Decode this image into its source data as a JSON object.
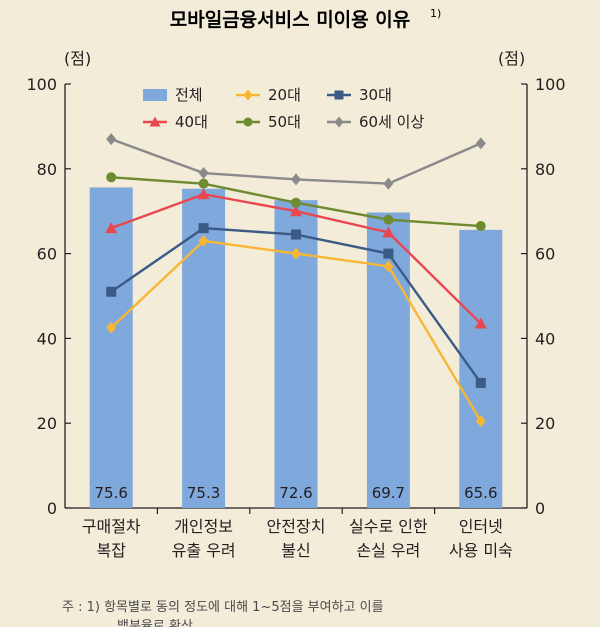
{
  "chart_data": {
    "type": "bar",
    "title": "모바일금융서비스 미이용 이유",
    "title_sup": "1)",
    "ylabel_left": "(점)",
    "ylabel_right": "(점)",
    "ylim": [
      0,
      100
    ],
    "yticks": [
      0,
      20,
      40,
      60,
      80,
      100
    ],
    "categories": [
      [
        "구매절차",
        "복잡"
      ],
      [
        "개인정보",
        "유출 우려"
      ],
      [
        "안전장치",
        "불신"
      ],
      [
        "실수로 인한",
        "손실 우려"
      ],
      [
        "인터넷",
        "사용 미숙"
      ]
    ],
    "bar_series": {
      "name": "전체",
      "color": "#7fa8dc",
      "values": [
        75.6,
        75.3,
        72.6,
        69.7,
        65.6
      ],
      "labels": [
        "75.6",
        "75.3",
        "72.6",
        "69.7",
        "65.6"
      ]
    },
    "line_series": [
      {
        "name": "20대",
        "color": "#f7b733",
        "marker": "diamond",
        "values": [
          42.5,
          63.0,
          60.0,
          57.0,
          20.5
        ]
      },
      {
        "name": "30대",
        "color": "#3c5a86",
        "marker": "square",
        "values": [
          51.0,
          66.0,
          64.5,
          60.0,
          29.5
        ]
      },
      {
        "name": "40대",
        "color": "#e9464f",
        "marker": "triangle",
        "values": [
          66.0,
          74.0,
          70.0,
          65.0,
          43.5
        ]
      },
      {
        "name": "50대",
        "color": "#6e8b2f",
        "marker": "circle",
        "values": [
          78.0,
          76.5,
          72.0,
          68.0,
          66.5
        ]
      },
      {
        "name": "60세 이상",
        "color": "#8a8a8a",
        "marker": "diamond",
        "values": [
          87.0,
          79.0,
          77.5,
          76.5,
          86.0
        ]
      }
    ],
    "legend_order": [
      "전체",
      "20대",
      "30대",
      "40대",
      "50대",
      "60세 이상"
    ],
    "legend_position": "top",
    "grid": false
  },
  "note": "주 : 1) 항목별로 동의 정도에 대해 1~5점을 부여하고 이를",
  "note_cont": "백분율로 환산"
}
